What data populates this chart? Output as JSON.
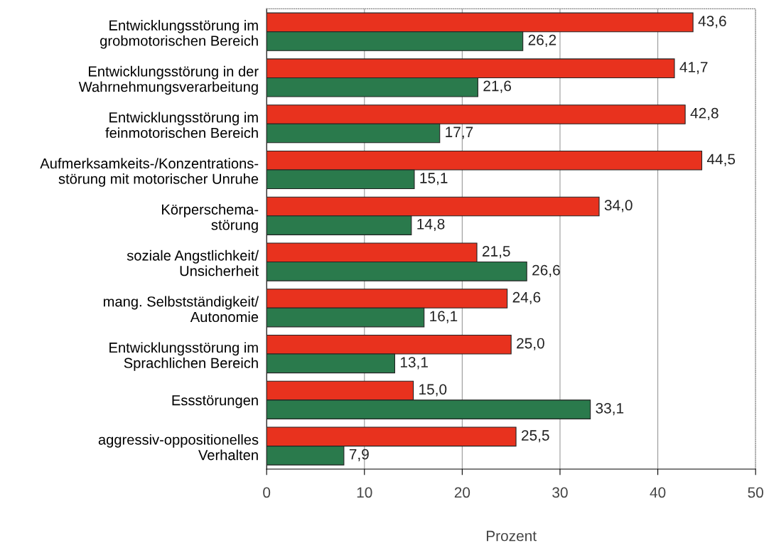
{
  "chart_data": {
    "type": "bar",
    "orientation": "horizontal",
    "xlabel": "Prozent",
    "categories": [
      "Entwicklungsstörung im\ngrobmotorischen Bereich",
      "Entwicklungsstörung in der\nWahrnehmungsverarbeitung",
      "Entwicklungsstörung im\nfeinmotorischen Bereich",
      "Aufmerksamkeits-/Konzentrations-\nstörung mit motorischer Unruhe",
      "Körperschema-\nstörung",
      "soziale Angstlichkeit/\nUnsicherheit",
      "mang. Selbstständigkeit/\nAutonomie",
      "Entwicklungsstörung im\nSprachlichen Bereich",
      "Essstörungen",
      "aggressiv-oppositionelles\nVerhalten"
    ],
    "series": [
      {
        "color": "#e8321e",
        "values": [
          43.6,
          41.7,
          42.8,
          44.5,
          34.0,
          21.5,
          24.6,
          25.0,
          15.0,
          25.5
        ],
        "value_labels": [
          "43,6",
          "41,7",
          "42,8",
          "44,5",
          "34,0",
          "21,5",
          "24,6",
          "25,0",
          "15,0",
          "25,5"
        ]
      },
      {
        "color": "#2a7a4c",
        "values": [
          26.2,
          21.6,
          17.7,
          15.1,
          14.8,
          26.6,
          16.1,
          13.1,
          33.1,
          7.9
        ],
        "value_labels": [
          "26,2",
          "21,6",
          "17,7",
          "15,1",
          "14,8",
          "26,6",
          "16,1",
          "13,1",
          "33,1",
          "7,9"
        ]
      }
    ],
    "xlim": [
      0,
      50
    ],
    "xticks": [
      0,
      10,
      20,
      30,
      40,
      50
    ],
    "grid": "x",
    "legend": false
  }
}
